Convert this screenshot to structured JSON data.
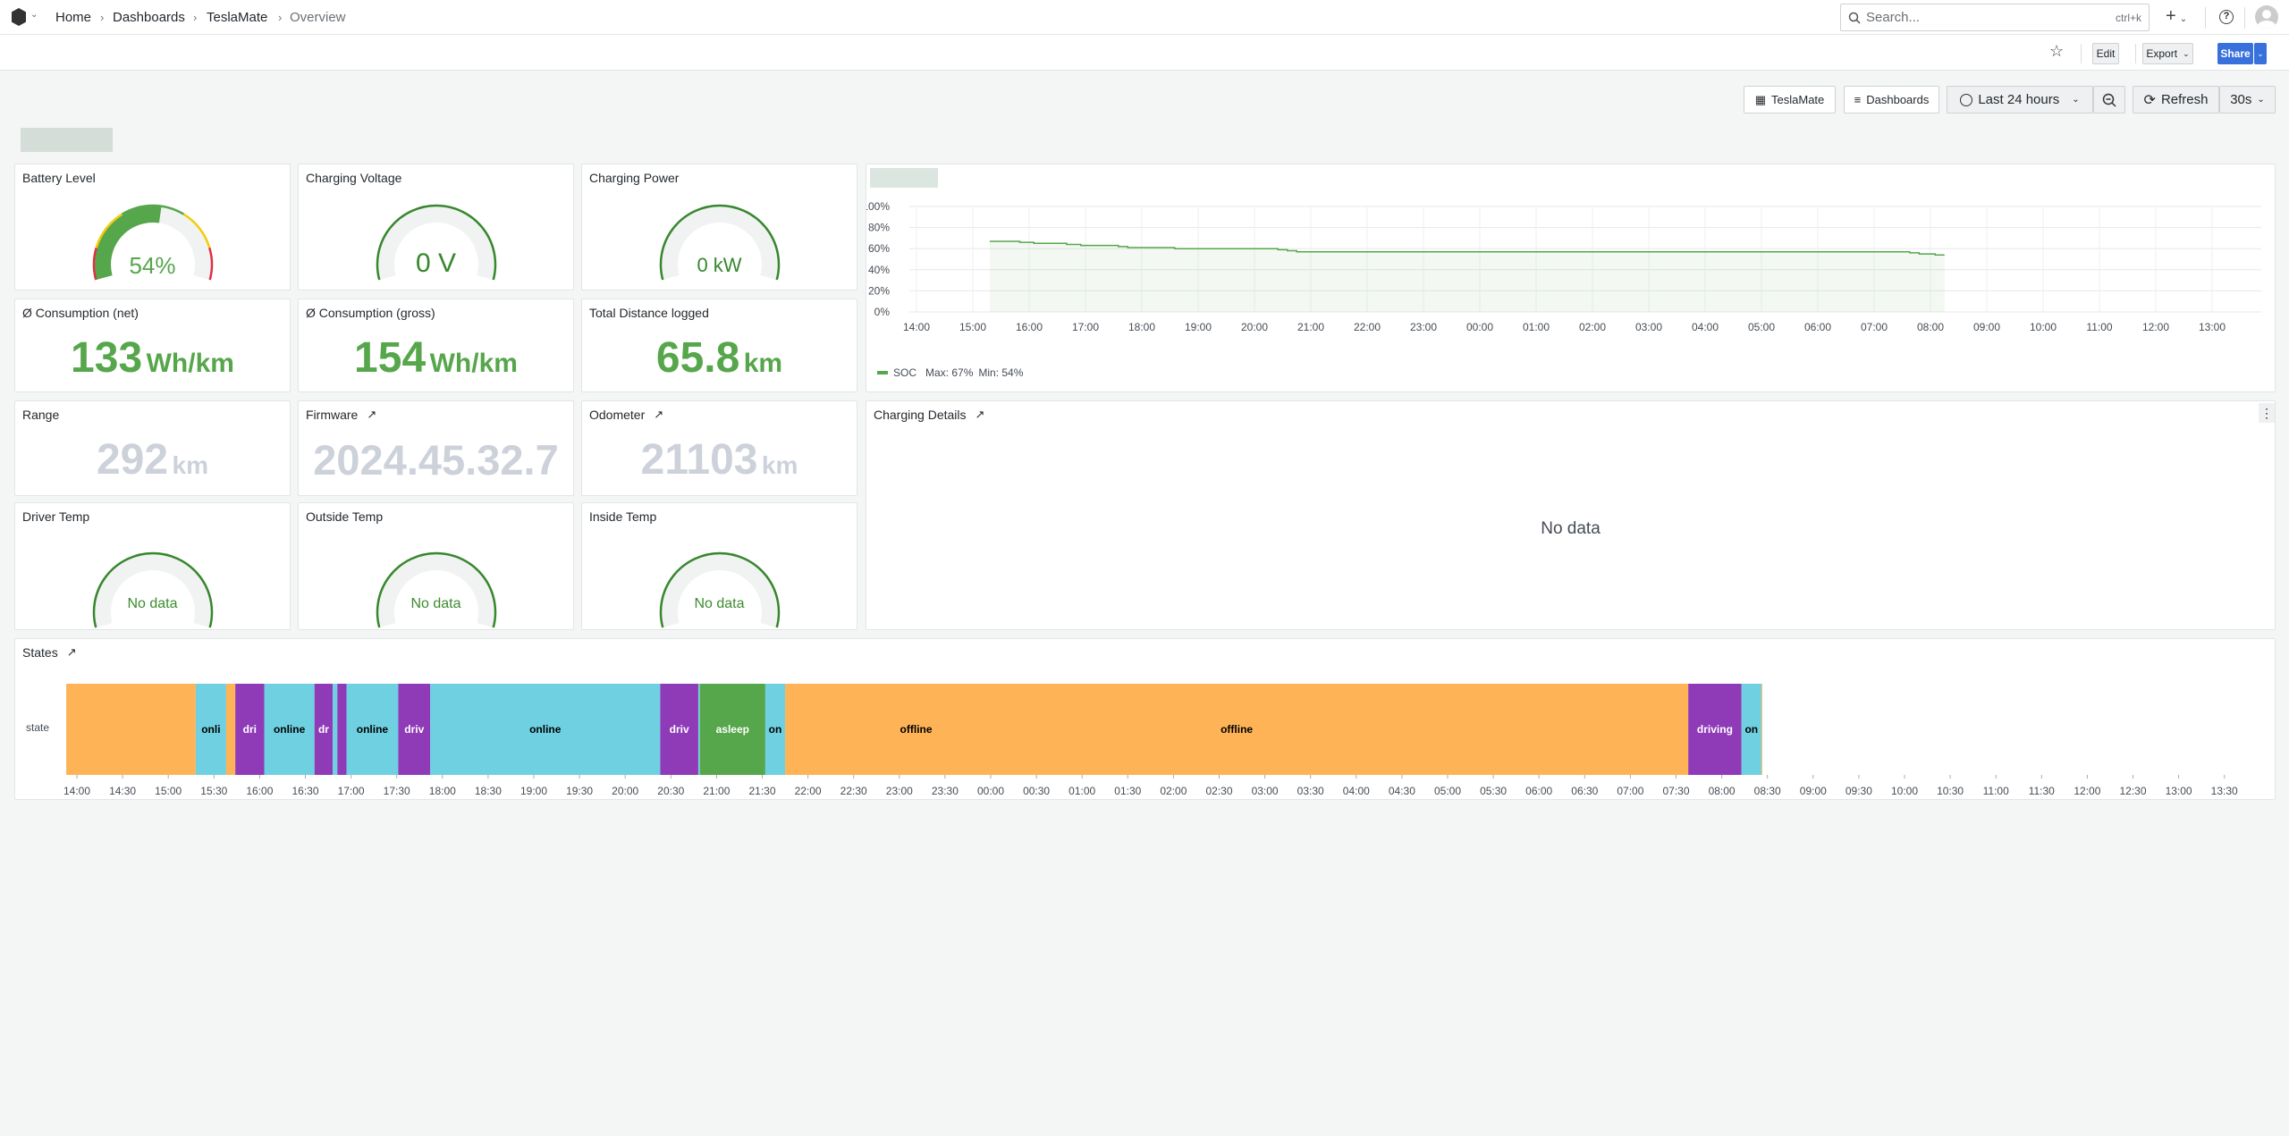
{
  "topbar": {
    "breadcrumb": [
      "Home",
      "Dashboards",
      "TeslaMate",
      "Overview"
    ],
    "search_placeholder": "Search...",
    "search_shortcut": "ctrl+k"
  },
  "toolbar": {
    "edit": "Edit",
    "export": "Export",
    "share": "Share"
  },
  "controls": {
    "teslamate": "TeslaMate",
    "dashboards": "Dashboards",
    "time_range": "Last 24 hours",
    "refresh": "Refresh",
    "interval": "30s"
  },
  "panels": {
    "battery": {
      "title": "Battery Level",
      "value": 54,
      "display": "54%",
      "min": 0,
      "max": 100
    },
    "voltage": {
      "title": "Charging Voltage",
      "value": 0,
      "display": "0 V"
    },
    "power": {
      "title": "Charging Power",
      "value": 0,
      "display": "0 kW"
    },
    "cons_net": {
      "title": "Ø Consumption (net)",
      "value": "133",
      "unit": "Wh/km"
    },
    "cons_gross": {
      "title": "Ø Consumption (gross)",
      "value": "154",
      "unit": "Wh/km"
    },
    "distance": {
      "title": "Total Distance logged",
      "value": "65.8",
      "unit": "km"
    },
    "range": {
      "title": "Range",
      "value": "292",
      "unit": "km"
    },
    "firmware": {
      "title": "Firmware",
      "value": "2024.45.32.7"
    },
    "odometer": {
      "title": "Odometer",
      "value": "21103",
      "unit": "km"
    },
    "driver_temp": {
      "title": "Driver Temp",
      "value": "No data"
    },
    "outside_temp": {
      "title": "Outside Temp",
      "value": "No data"
    },
    "inside_temp": {
      "title": "Inside Temp",
      "value": "No data"
    },
    "charging_details": {
      "title": "Charging Details",
      "value": "No data"
    },
    "states": {
      "title": "States",
      "row_label": "state"
    }
  },
  "colors": {
    "green": "#56a64b",
    "online": "#6ed0e0",
    "offline": "#ffb357",
    "driving": "#8f3bb8",
    "asleep": "#56a64b"
  },
  "chart_data": {
    "type": "line",
    "series": [
      {
        "name": "SOC",
        "points": [
          [
            "15:18",
            67
          ],
          [
            "15:50",
            66
          ],
          [
            "16:05",
            65
          ],
          [
            "16:40",
            64
          ],
          [
            "16:55",
            63
          ],
          [
            "17:35",
            62
          ],
          [
            "17:45",
            61
          ],
          [
            "18:35",
            60
          ],
          [
            "20:25",
            59
          ],
          [
            "20:35",
            58
          ],
          [
            "20:45",
            57
          ],
          [
            "07:38",
            56
          ],
          [
            "07:48",
            55
          ],
          [
            "08:05",
            54
          ],
          [
            "08:15",
            54
          ]
        ]
      }
    ],
    "legend": {
      "name": "SOC",
      "max": "Max: 67%",
      "min": "Min: 54%"
    },
    "ylim": [
      0,
      100
    ],
    "yticks": [
      "0%",
      "20%",
      "40%",
      "60%",
      "80%",
      "100%"
    ],
    "xticks": [
      "14:00",
      "15:00",
      "16:00",
      "17:00",
      "18:00",
      "19:00",
      "20:00",
      "21:00",
      "22:00",
      "23:00",
      "00:00",
      "01:00",
      "02:00",
      "03:00",
      "04:00",
      "05:00",
      "06:00",
      "07:00",
      "08:00",
      "09:00",
      "10:00",
      "11:00",
      "12:00",
      "13:00"
    ]
  },
  "states_data": {
    "segments": [
      {
        "state": "offline",
        "start": "13:53",
        "end": "15:18",
        "label": ""
      },
      {
        "state": "online",
        "start": "15:18",
        "end": "15:38",
        "label": "onli"
      },
      {
        "state": "offline",
        "start": "15:38",
        "end": "15:44",
        "label": ""
      },
      {
        "state": "driving",
        "start": "15:44",
        "end": "16:03",
        "label": "dri"
      },
      {
        "state": "online",
        "start": "16:03",
        "end": "16:36",
        "label": "online"
      },
      {
        "state": "driving",
        "start": "16:36",
        "end": "16:48",
        "label": "dr"
      },
      {
        "state": "online",
        "start": "16:48",
        "end": "16:51",
        "label": ""
      },
      {
        "state": "driving",
        "start": "16:51",
        "end": "16:57",
        "label": ""
      },
      {
        "state": "online",
        "start": "16:57",
        "end": "17:31",
        "label": "online"
      },
      {
        "state": "driving",
        "start": "17:31",
        "end": "17:52",
        "label": "driv"
      },
      {
        "state": "online",
        "start": "17:52",
        "end": "20:23",
        "label": "online"
      },
      {
        "state": "driving",
        "start": "20:23",
        "end": "20:48",
        "label": "driv"
      },
      {
        "state": "online",
        "start": "20:48",
        "end": "20:49",
        "label": ""
      },
      {
        "state": "asleep",
        "start": "20:49",
        "end": "21:32",
        "label": "asleep"
      },
      {
        "state": "online",
        "start": "21:32",
        "end": "21:45",
        "label": "on"
      },
      {
        "state": "offline",
        "start": "21:45",
        "end": "07:38",
        "label": "offline"
      },
      {
        "state": "driving",
        "start": "07:38",
        "end": "08:13",
        "label": "driving"
      },
      {
        "state": "online",
        "start": "08:13",
        "end": "08:26",
        "label": "on"
      },
      {
        "state": "offline",
        "start": "08:26",
        "end": "13:56",
        "label": "offline"
      }
    ],
    "xticks": [
      "14:00",
      "14:30",
      "15:00",
      "15:30",
      "16:00",
      "16:30",
      "17:00",
      "17:30",
      "18:00",
      "18:30",
      "19:00",
      "19:30",
      "20:00",
      "20:30",
      "21:00",
      "21:30",
      "22:00",
      "22:30",
      "23:00",
      "23:30",
      "00:00",
      "00:30",
      "01:00",
      "01:30",
      "02:00",
      "02:30",
      "03:00",
      "03:30",
      "04:00",
      "04:30",
      "05:00",
      "05:30",
      "06:00",
      "06:30",
      "07:00",
      "07:30",
      "08:00",
      "08:30",
      "09:00",
      "09:30",
      "10:00",
      "10:30",
      "11:00",
      "11:30",
      "12:00",
      "12:30",
      "13:00",
      "13:30"
    ]
  }
}
